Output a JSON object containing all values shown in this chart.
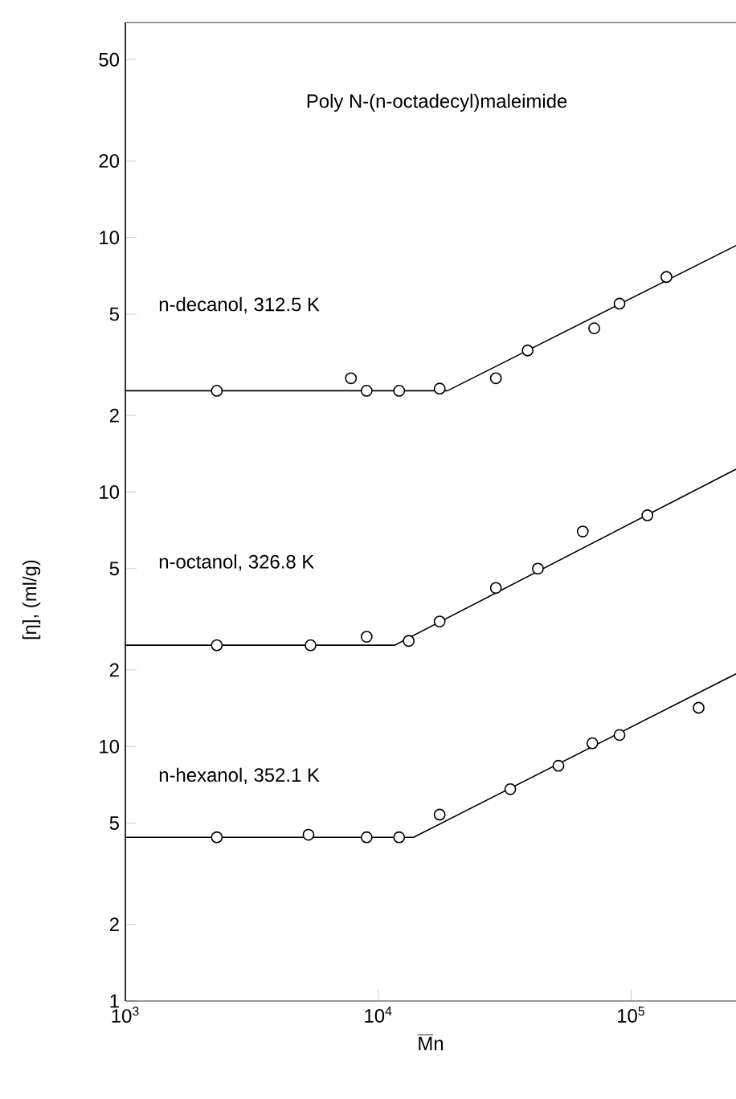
{
  "chart_data": [
    {
      "type": "scatter",
      "title": "Poly N-(n-octadecyl)maleimide",
      "log": "xy",
      "tick_labels": "y",
      "xlim": [
        1000,
        260000
      ],
      "ylim": [
        0.01,
        70
      ],
      "yticks": [
        2,
        5,
        10,
        20,
        50
      ],
      "series": [
        {
          "name": "n-decanol, 312.5 K",
          "marker": "circle",
          "color": "#000000",
          "x": [
            2300,
            7800,
            9000,
            12100,
            17500,
            29200,
            39000,
            71500,
            90000,
            138000
          ],
          "values": [
            2.5,
            2.8,
            2.5,
            2.5,
            2.55,
            2.8,
            3.6,
            4.4,
            5.5,
            7.0
          ]
        },
        {
          "type": "line",
          "marker": "none",
          "color": "#000000",
          "x": [
            1000,
            18800,
            260000
          ],
          "values": [
            2.5,
            2.5,
            9.3
          ]
        }
      ]
    },
    {
      "type": "scatter",
      "ylabel": "[η], (ml/g)",
      "log": "xy",
      "tick_labels": "y",
      "xlim": [
        1000,
        260000
      ],
      "ylim": [
        0.1,
        700
      ],
      "yticks": [
        2,
        5,
        10
      ],
      "series": [
        {
          "name": "n-octanol, 326.8 K",
          "marker": "circle",
          "color": "#000000",
          "x": [
            2300,
            5400,
            9000,
            13200,
            17500,
            29200,
            42800,
            64400,
            116000
          ],
          "values": [
            2.5,
            2.5,
            2.7,
            2.6,
            3.1,
            4.2,
            5.0,
            7.0,
            8.1
          ]
        },
        {
          "type": "line",
          "marker": "none",
          "color": "#000000",
          "x": [
            1000,
            11600,
            260000
          ],
          "values": [
            2.5,
            2.5,
            12.3
          ]
        }
      ]
    },
    {
      "type": "scatter",
      "xlabel": "\\overline{\\mathrm{M}}\\mathrm{n}",
      "log": "xy",
      "xlim": [
        1000,
        260000
      ],
      "ylim": [
        1,
        7000
      ],
      "yticks": [
        1,
        2,
        5,
        10
      ],
      "xticks": [
        {
          "value": 1000,
          "label": "10$^{3}$"
        },
        {
          "value": 10000,
          "label": "10$^{4}$"
        },
        {
          "value": 100000,
          "label": "10$^{5}$"
        }
      ],
      "series": [
        {
          "name": "n-hexanol, 352.1 K",
          "marker": "circle",
          "color": "#000000",
          "x": [
            2300,
            5300,
            9000,
            12100,
            17500,
            33300,
            51600,
            70300,
            90000,
            185000
          ],
          "values": [
            4.4,
            4.5,
            4.4,
            4.4,
            5.4,
            6.8,
            8.4,
            10.3,
            11.1,
            14.2
          ]
        },
        {
          "type": "line",
          "marker": "none",
          "color": "#000000",
          "x": [
            1000,
            13800,
            260000
          ],
          "values": [
            4.4,
            4.4,
            19.3
          ]
        }
      ]
    }
  ]
}
